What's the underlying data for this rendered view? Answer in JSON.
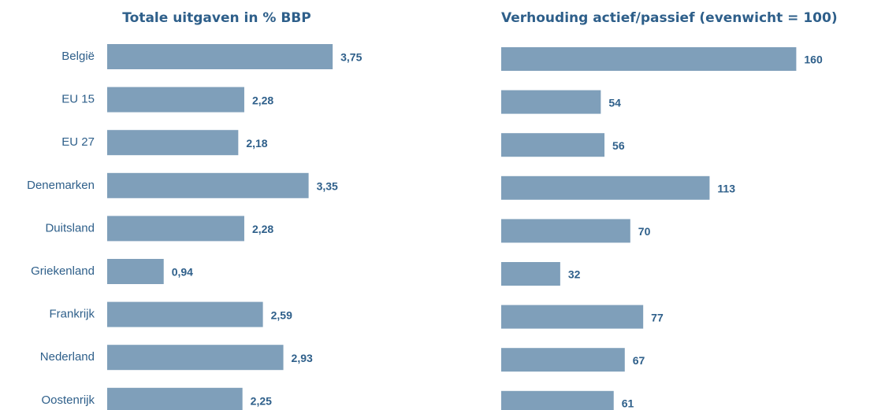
{
  "chart_data": [
    {
      "type": "hbar",
      "title": "Totale uitgaven in % BBP",
      "categories": [
        "België",
        "EU 15",
        "EU 27",
        "Denemarken",
        "Duitsland",
        "Griekenland",
        "Frankrijk",
        "Nederland",
        "Oostenrijk"
      ],
      "values": [
        3.75,
        2.28,
        2.18,
        3.35,
        2.28,
        0.94,
        2.59,
        2.93,
        2.25
      ],
      "value_labels": [
        "3,75",
        "2,28",
        "2,18",
        "3,35",
        "2,28",
        "0,94",
        "2,59",
        "2,93",
        "2,25"
      ],
      "color": "#7f9fba"
    },
    {
      "type": "hbar",
      "title": "Verhouding actief/passief (evenwicht = 100)",
      "values": [
        160,
        54,
        56,
        113,
        70,
        32,
        77,
        67,
        61
      ],
      "color": "#7f9fba"
    }
  ]
}
